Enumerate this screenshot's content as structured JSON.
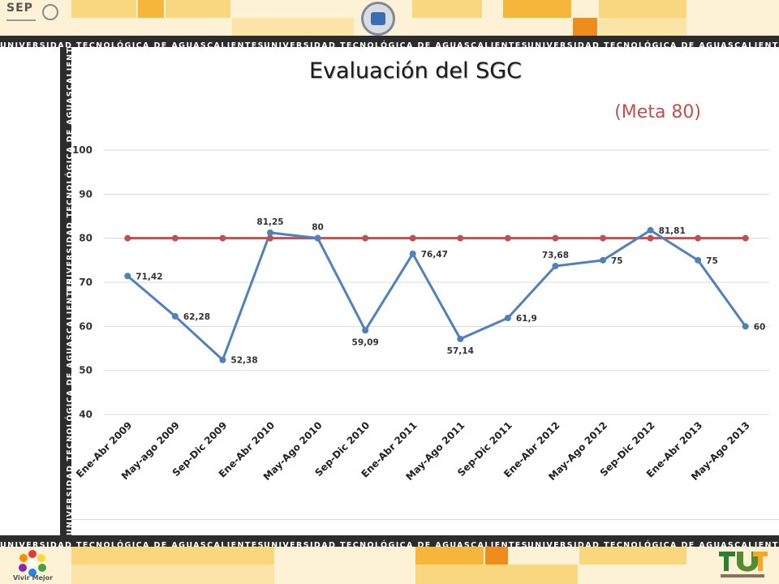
{
  "header": {
    "institution_band": "UNIVERSIDAD TECNOLÓGICA DE AGUASCALIENTES",
    "sep_label": "SEP"
  },
  "footer": {
    "vivir_label": "Vivir Mejor"
  },
  "colors": {
    "band": "#2c2c2c",
    "tile_light": "#fdf2d6",
    "tile_mid": "#f9d77e",
    "tile_strong": "#f5b63b",
    "series_main": "#4f81bd",
    "series_target": "#c0504d"
  },
  "icons": [
    "sep-logo",
    "mexico-emblem",
    "ut-seal",
    "vivir-mejor-logo",
    "xx-anos-logo"
  ],
  "chart_data": {
    "type": "line",
    "title": "Evaluación del SGC",
    "subtitle": "(Meta 80)",
    "categories": [
      "Ene-Abr 2009",
      "May-ago 2009",
      "Sep-Dic 2009",
      "Ene-Abr 2010",
      "May-Ago 2010",
      "Sep-Dic 2010",
      "Ene-Abr 2011",
      "May-Ago 2011",
      "Sep-Dic 2011",
      "Ene-Abr 2012",
      "May-Ago 2012",
      "Sep-Dic 2012",
      "Ene-Abr 2013",
      "May-Ago 2013"
    ],
    "series": [
      {
        "values": [
          71.42,
          62.28,
          52.38,
          81.25,
          80,
          59.09,
          76.47,
          57.14,
          61.9,
          73.68,
          75,
          81.81,
          75,
          60
        ],
        "labels": [
          "71,42",
          "62,28",
          "52,38",
          "81,25",
          "80",
          "59,09",
          "76,47",
          "57,14",
          "61,9",
          "73,68",
          "75",
          "81,81",
          "75",
          "60"
        ],
        "color": "#4f81bd"
      },
      {
        "values": [
          80,
          80,
          80,
          80,
          80,
          80,
          80,
          80,
          80,
          80,
          80,
          80,
          80,
          80
        ],
        "color": "#c0504d"
      }
    ],
    "ylim": [
      40,
      100
    ],
    "yticks": [
      "40",
      "50",
      "60",
      "70",
      "80",
      "90",
      "100"
    ],
    "grid": true,
    "legend": "none"
  }
}
